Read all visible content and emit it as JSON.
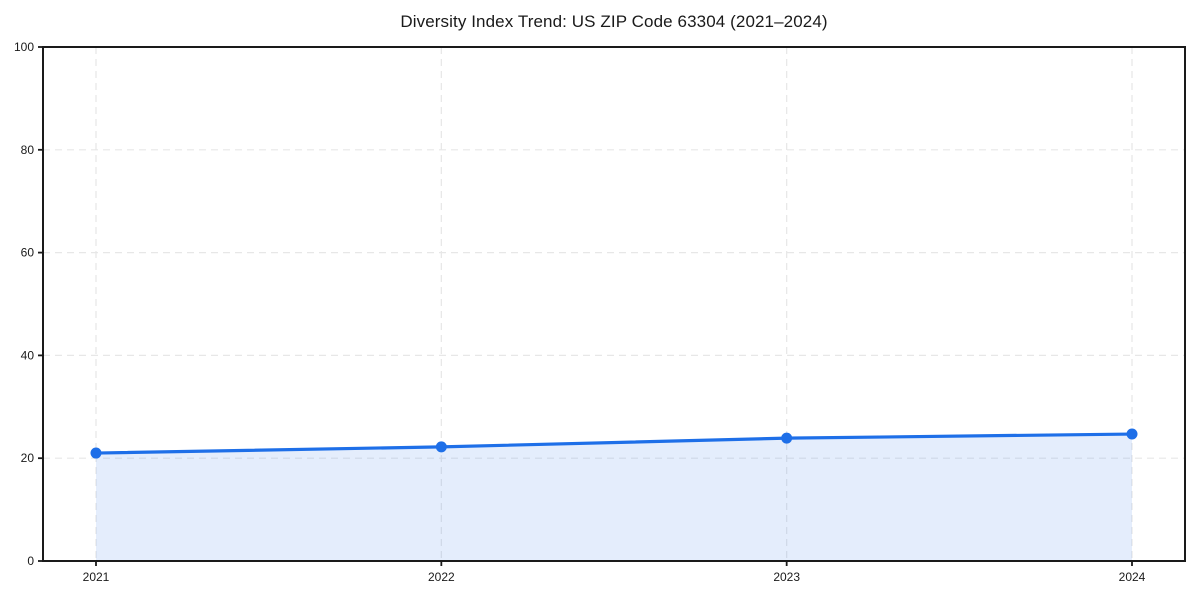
{
  "chart_data": {
    "type": "line",
    "title": "Diversity Index Trend: US ZIP Code 63304 (2021–2024)",
    "x": [
      "2021",
      "2022",
      "2023",
      "2024"
    ],
    "values": [
      21.0,
      22.2,
      23.9,
      24.7
    ],
    "xlabel": "",
    "ylabel": "",
    "ylim": [
      0,
      100
    ],
    "yticks": [
      0,
      20,
      40,
      60,
      80,
      100
    ],
    "grid": true,
    "grid_style": "dashed",
    "legend_position": "none",
    "fill_under_line": true,
    "colors": {
      "line": "#1e6fe8",
      "marker": "#1e6fe8",
      "area_fill": "rgba(30, 111, 232, 0.12)",
      "grid": "#e7e7e7",
      "axis": "#1a1a1a",
      "tick_text": "#1a1a1a",
      "background": "#ffffff"
    }
  }
}
